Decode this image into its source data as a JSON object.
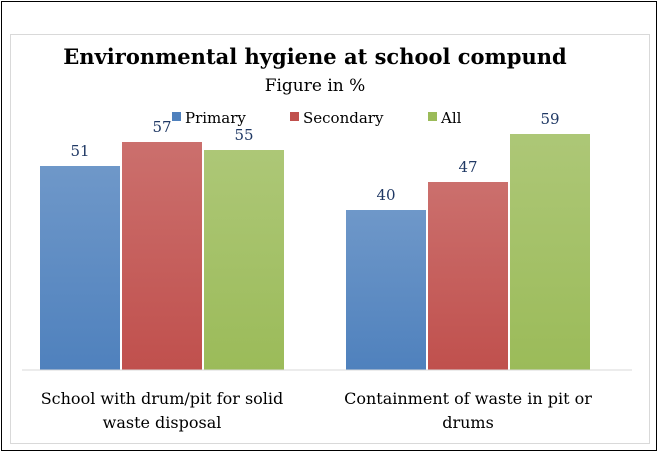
{
  "chart_data": {
    "type": "bar",
    "title": "Environmental hygiene at school compund",
    "subtitle": "Figure in %",
    "categories": [
      [
        "School with drum/pit for solid",
        "waste disposal"
      ],
      [
        "Containment of waste in pit or",
        "drums"
      ]
    ],
    "series": [
      {
        "name": "Primary",
        "values": [
          51,
          40
        ],
        "color": "#4f81bd"
      },
      {
        "name": "Secondary",
        "values": [
          57,
          47
        ],
        "color": "#c0504d"
      },
      {
        "name": "All",
        "values": [
          55,
          59
        ],
        "color": "#9bbb59"
      }
    ],
    "ylim": [
      0,
      65
    ],
    "grid": false,
    "legend": "top-center"
  }
}
